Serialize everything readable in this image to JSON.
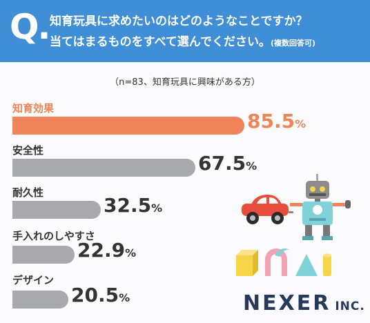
{
  "header": {
    "q_mark": "Q.",
    "question_line1": "知育玩具に求めたいのはどのようなことですか？",
    "question_line2": "当てはまるものをすべて選んでください。",
    "question_note": "(複数回答可)"
  },
  "chart_data": {
    "type": "bar",
    "orientation": "horizontal",
    "subtitle": "（n=83、知育玩具に興味がある方）",
    "categories": [
      "知育効果",
      "安全性",
      "耐久性",
      "手入れのしやすさ",
      "デザイン"
    ],
    "values": [
      85.5,
      67.5,
      32.5,
      22.9,
      20.5
    ],
    "value_labels": [
      "85.5",
      "67.5",
      "32.5",
      "22.9",
      "20.5"
    ],
    "unit": "%",
    "highlight_index": 0,
    "colors": {
      "highlight": "#ef8458",
      "default": "#a8a9ad",
      "header": "#3f8ed6"
    }
  },
  "brand": {
    "name": "NEXER",
    "suffix": "INC."
  }
}
